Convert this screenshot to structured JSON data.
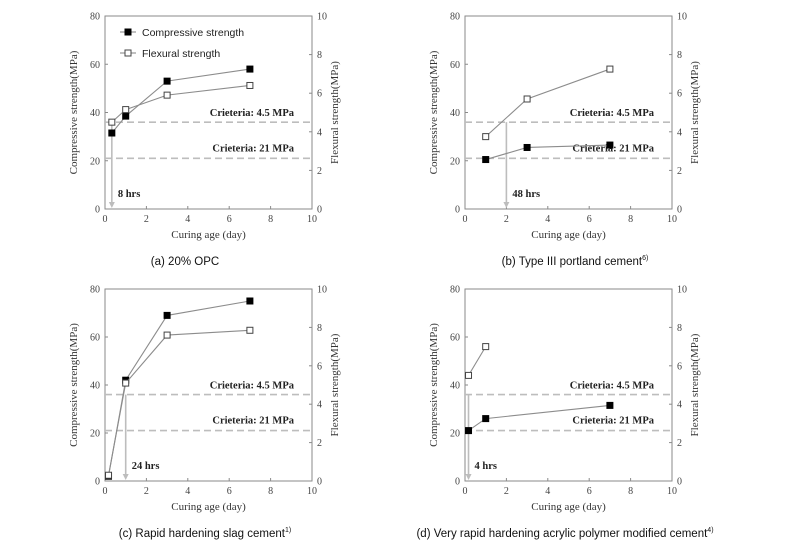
{
  "chart_data": [
    {
      "id": "a",
      "type": "line",
      "caption": "(a) 20% OPC",
      "caption_superscript": "",
      "xlabel": "Curing age (day)",
      "ylabel_left": "Compressive strength(MPa)",
      "ylabel_right": "Flexural strength(MPa)",
      "xlim": [
        0,
        10
      ],
      "ylim_left": [
        0,
        80
      ],
      "ylim_right": [
        0,
        10
      ],
      "xticks": [
        "0",
        "2",
        "4",
        "6",
        "8",
        "10"
      ],
      "yticks_left": [
        "0",
        "20",
        "40",
        "60",
        "80"
      ],
      "yticks_right": [
        "0",
        "2",
        "4",
        "6",
        "8",
        "10"
      ],
      "legend": {
        "show": true,
        "placement": "top-left",
        "entries": [
          "Compressive strength",
          "Flexural strength"
        ]
      },
      "series": [
        {
          "name": "Compressive strength",
          "axis": "left",
          "marker": "filled-square",
          "x": [
            0.33,
            1,
            3,
            7
          ],
          "y": [
            31.5,
            38.5,
            53,
            58
          ]
        },
        {
          "name": "Flexural strength",
          "axis": "right",
          "marker": "open-square",
          "x": [
            0.33,
            1,
            3,
            7
          ],
          "y": [
            4.5,
            5.15,
            5.9,
            6.4
          ]
        }
      ],
      "criteria": [
        {
          "label": "Crieteria: 4.5 MPa",
          "axis": "right",
          "value": 4.5
        },
        {
          "label": "Crieteria: 21 MPa",
          "axis": "left",
          "value": 21
        }
      ],
      "arrow": {
        "label": "8 hrs",
        "x": 0.33
      }
    },
    {
      "id": "b",
      "type": "line",
      "caption": "(b) Type III portland cement",
      "caption_superscript": "6)",
      "xlabel": "Curing age (day)",
      "ylabel_left": "Compressive strength(MPa)",
      "ylabel_right": "Flexural  strength(MPa)",
      "xlim": [
        0,
        10
      ],
      "ylim_left": [
        0,
        80
      ],
      "ylim_right": [
        0,
        10
      ],
      "xticks": [
        "0",
        "2",
        "4",
        "6",
        "8",
        "10"
      ],
      "yticks_left": [
        "0",
        "20",
        "40",
        "60",
        "80"
      ],
      "yticks_right": [
        "0",
        "2",
        "4",
        "6",
        "8",
        "10"
      ],
      "legend": {
        "show": false
      },
      "series": [
        {
          "name": "Compressive strength",
          "axis": "left",
          "marker": "filled-square",
          "x": [
            1,
            3,
            7
          ],
          "y": [
            20.5,
            25.5,
            26.5
          ]
        },
        {
          "name": "Flexural strength",
          "axis": "right",
          "marker": "open-square",
          "x": [
            1,
            3,
            7
          ],
          "y": [
            3.75,
            5.7,
            7.25
          ]
        }
      ],
      "criteria": [
        {
          "label": "Crieteria: 4.5 MPa",
          "axis": "right",
          "value": 4.5
        },
        {
          "label": "Crieteria: 21 MPa",
          "axis": "left",
          "value": 21
        }
      ],
      "arrow": {
        "label": "48 hrs",
        "x": 2
      }
    },
    {
      "id": "c",
      "type": "line",
      "caption": "(c) Rapid hardening slag cement",
      "caption_superscript": "1)",
      "xlabel": "Curing age (day)",
      "ylabel_left": "Compressive strength(MPa)",
      "ylabel_right": "Flexural  strength(MPa)",
      "xlim": [
        0,
        10
      ],
      "ylim_left": [
        0,
        80
      ],
      "ylim_right": [
        0,
        10
      ],
      "xticks": [
        "0",
        "2",
        "4",
        "6",
        "8",
        "10"
      ],
      "yticks_left": [
        "0",
        "20",
        "40",
        "60",
        "80"
      ],
      "yticks_right": [
        "0",
        "2",
        "4",
        "6",
        "8",
        "10"
      ],
      "legend": {
        "show": false
      },
      "series": [
        {
          "name": "Compressive strength",
          "axis": "left",
          "marker": "filled-square",
          "x": [
            0.17,
            1,
            3,
            7
          ],
          "y": [
            2,
            42,
            69,
            75
          ]
        },
        {
          "name": "Flexural strength",
          "axis": "right",
          "marker": "open-square",
          "x": [
            0.17,
            1,
            3,
            7
          ],
          "y": [
            0.3,
            5.1,
            7.6,
            7.85
          ]
        }
      ],
      "criteria": [
        {
          "label": "Crieteria: 4.5 MPa",
          "axis": "right",
          "value": 4.5
        },
        {
          "label": "Crieteria: 21 MPa",
          "axis": "left",
          "value": 21
        }
      ],
      "arrow": {
        "label": "24 hrs",
        "x": 1
      }
    },
    {
      "id": "d",
      "type": "line",
      "caption": "(d) Very rapid hardening acrylic polymer modified cement",
      "caption_superscript": "4)",
      "xlabel": "Curing age (day)",
      "ylabel_left": "Compressive strength(MPa)",
      "ylabel_right": "Flexural strength(MPa)",
      "xlim": [
        0,
        10
      ],
      "ylim_left": [
        0,
        80
      ],
      "ylim_right": [
        0,
        10
      ],
      "xticks": [
        "0",
        "2",
        "4",
        "6",
        "8",
        "10"
      ],
      "yticks_left": [
        "0",
        "20",
        "40",
        "60",
        "80"
      ],
      "yticks_right": [
        "0",
        "2",
        "4",
        "6",
        "8",
        "10"
      ],
      "legend": {
        "show": false
      },
      "series": [
        {
          "name": "Compressive strength",
          "axis": "left",
          "marker": "filled-square",
          "x": [
            0.17,
            1,
            7
          ],
          "y": [
            21,
            26,
            31.5
          ]
        },
        {
          "name": "Flexural strength",
          "axis": "right",
          "marker": "open-square",
          "x": [
            0.17,
            1
          ],
          "y": [
            5.5,
            7
          ]
        }
      ],
      "criteria": [
        {
          "label": "Crieteria: 4.5 MPa",
          "axis": "right",
          "value": 4.5
        },
        {
          "label": "Crieteria: 21 MPa",
          "axis": "left",
          "value": 21
        }
      ],
      "arrow": {
        "label": "4 hrs",
        "x": 0.17
      }
    }
  ]
}
